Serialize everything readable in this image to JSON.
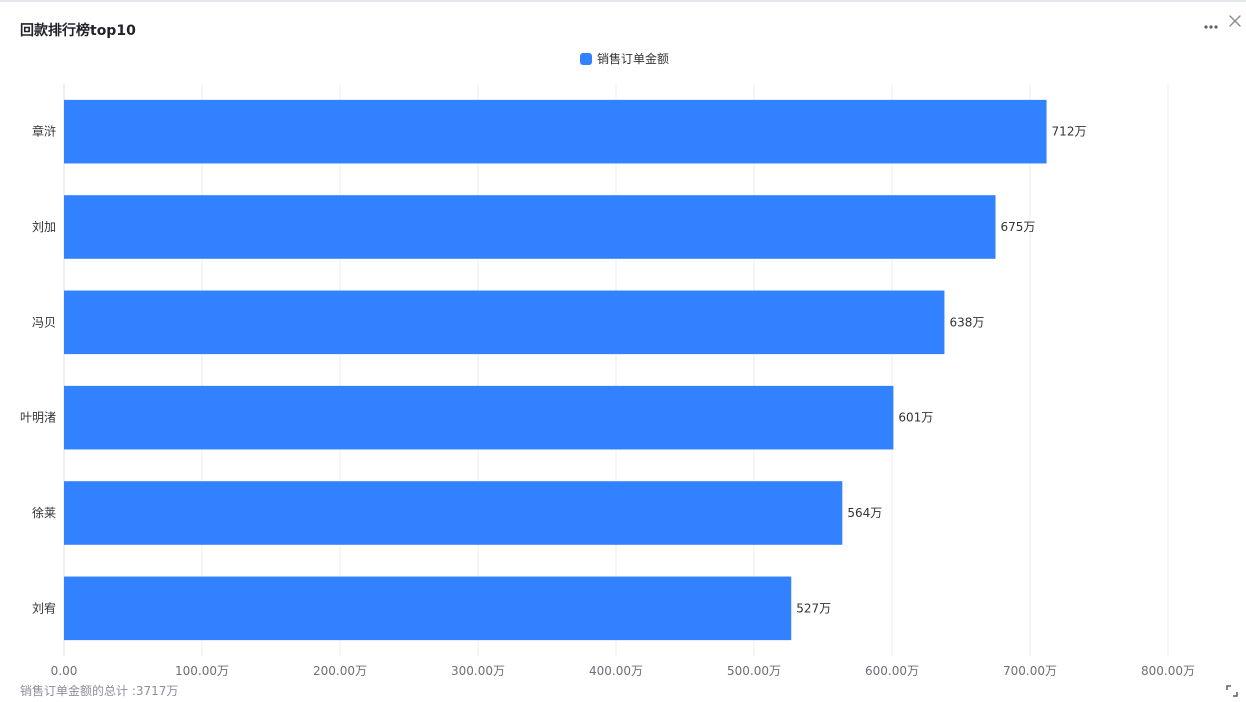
{
  "header": {
    "title": "回款排行榜top10"
  },
  "icons": {
    "more": "more-horizontal-icon",
    "close": "close-icon",
    "expand": "expand-icon"
  },
  "legend": {
    "label": "销售订单金额",
    "color": "#3282ff"
  },
  "footer": {
    "total_text": "销售订单金额的总计 :3717万"
  },
  "chart_data": {
    "type": "bar",
    "orientation": "horizontal",
    "categories": [
      "章浒",
      "刘加",
      "冯贝",
      "叶明渚",
      "徐莱",
      "刘宥"
    ],
    "series": [
      {
        "name": "销售订单金额",
        "values": [
          712,
          675,
          638,
          601,
          564,
          527
        ],
        "labels": [
          "712万",
          "675万",
          "638万",
          "601万",
          "564万",
          "527万"
        ]
      }
    ],
    "xlim": [
      0,
      800
    ],
    "xticks": [
      0,
      100,
      200,
      300,
      400,
      500,
      600,
      700,
      800
    ],
    "xtick_labels": [
      "0.00",
      "100.00万",
      "200.00万",
      "300.00万",
      "400.00万",
      "500.00万",
      "600.00万",
      "700.00万",
      "800.00万"
    ],
    "grid": true,
    "legend_position": "top-center"
  }
}
